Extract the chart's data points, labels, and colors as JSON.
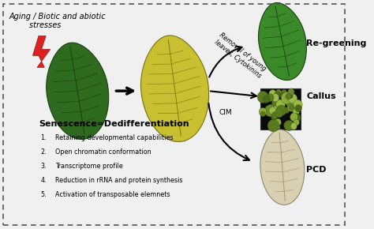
{
  "background_color": "#f0f0f0",
  "border_color": "#555555",
  "fig_width": 4.74,
  "fig_height": 2.9,
  "heading_text": "Aging / Biotic and abiotic\n        stresses",
  "heading_fontsize": 7.0,
  "senescence_text": "Senescence=Dedifferentiation",
  "senescence_fontsize": 8.0,
  "list_items": [
    "Retaining developmental capabilities",
    "Open chromatin conformation",
    "Transcriptome profile",
    "Reduction in rRNA and protein synthesis",
    "Activation of transposable elemnets"
  ],
  "list_fontsize": 5.8,
  "regreening_label": "Re-greening",
  "callus_label": "Callus",
  "pcd_label": "PCD",
  "arrow_label_removal": "Removal of young\nleaves, Cytokinins",
  "arrow_label_cim": "CIM",
  "green_leaf_dark": "#2e6b1e",
  "green_leaf_mid": "#3a8a2a",
  "leaf_vein_dark": "#1a4010",
  "yellow_leaf": "#c8c030",
  "yellow_vein": "#8a7a10",
  "pale_leaf": "#d8d0b0",
  "pale_vein": "#a09878",
  "regreen_leaf": "#3a8a2a",
  "regreen_vein": "#1a4a10"
}
